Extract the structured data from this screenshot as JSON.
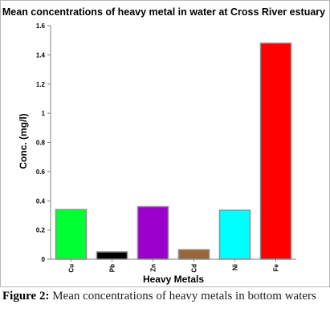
{
  "chart_data": {
    "type": "bar",
    "title": "Mean concentrations of heavy metal in water at Cross River estuary",
    "xlabel": "Heavy Metals",
    "ylabel": "Conc. (mg/l)",
    "categories": [
      "Cu",
      "Pb",
      "Zn",
      "Cd",
      "Ni",
      "Fe"
    ],
    "values": [
      0.34,
      0.05,
      0.36,
      0.065,
      0.335,
      1.48
    ],
    "colors": [
      "#00ff33",
      "#000000",
      "#9900cc",
      "#99663a",
      "#00ffff",
      "#ff0000"
    ],
    "ylim": [
      0,
      1.6
    ],
    "yticks": [
      "0",
      "0.2",
      "0.4",
      "0.6",
      "0.8",
      "1",
      "1.2",
      "1.4",
      "1.6"
    ],
    "grid": false,
    "legend": "none"
  },
  "caption": {
    "label": "Figure 2:",
    "text": " Mean concentrations of heavy metals in bottom waters"
  }
}
